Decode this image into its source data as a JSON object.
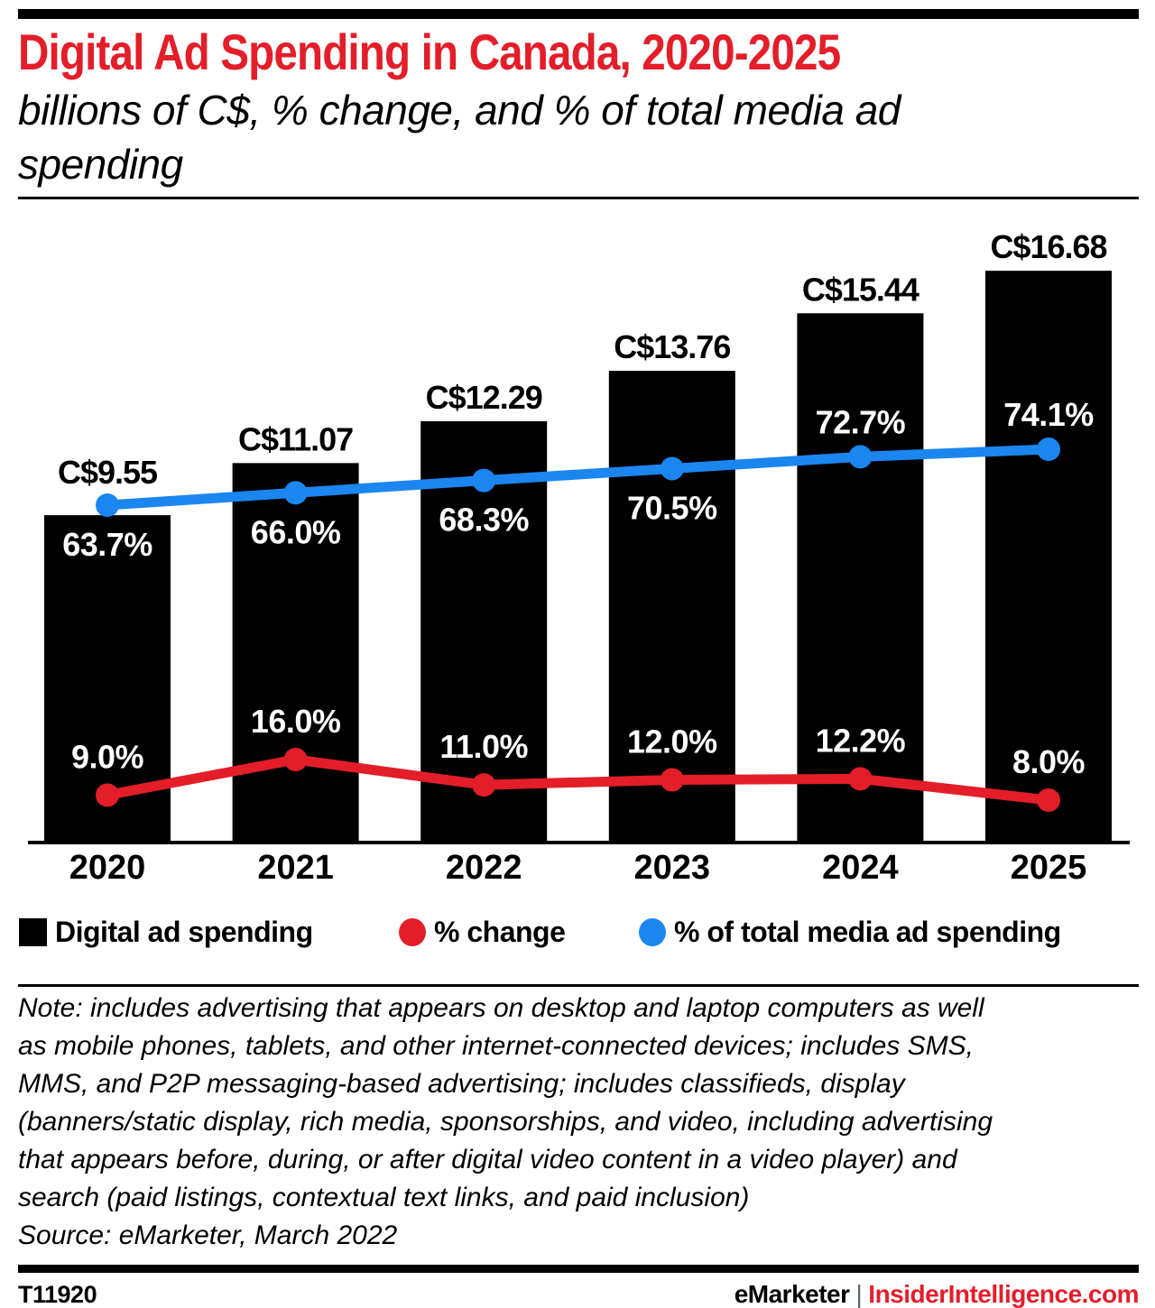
{
  "colors": {
    "red": "#e31e29",
    "blue": "#1b86ef",
    "black": "#000000",
    "white": "#ffffff",
    "separator_gray": "#5b6b7a"
  },
  "chart_data": {
    "type": "bar+line",
    "title": "Digital Ad Spending in Canada, 2020-2025",
    "subtitle": "billions of C$, % change, and % of total media ad spending",
    "subtitle_lines": [
      "billions of C$, % change, and % of total media ad",
      "spending"
    ],
    "categories": [
      "2020",
      "2021",
      "2022",
      "2023",
      "2024",
      "2025"
    ],
    "series": [
      {
        "name": "Digital ad spending",
        "type": "bar",
        "unit": "billions of C$",
        "color_key": "black",
        "values": [
          9.55,
          11.07,
          12.29,
          13.76,
          15.44,
          16.68
        ],
        "labels": [
          "C$9.55",
          "C$11.07",
          "C$12.29",
          "C$13.76",
          "C$15.44",
          "C$16.68"
        ]
      },
      {
        "name": "% change",
        "type": "line",
        "color_key": "red",
        "values": [
          9.0,
          16.0,
          11.0,
          12.0,
          12.2,
          8.0
        ],
        "labels": [
          "9.0%",
          "16.0%",
          "11.0%",
          "12.0%",
          "12.2%",
          "8.0%"
        ],
        "label_side": [
          "above",
          "above",
          "above",
          "above",
          "above",
          "above"
        ]
      },
      {
        "name": "% of total media ad spending",
        "type": "line",
        "color_key": "blue",
        "values": [
          63.7,
          66.0,
          68.3,
          70.5,
          72.7,
          74.1
        ],
        "labels": [
          "63.7%",
          "66.0%",
          "68.3%",
          "70.5%",
          "72.7%",
          "74.1%"
        ],
        "label_side": [
          "below",
          "below",
          "below",
          "below",
          "above",
          "above"
        ]
      }
    ],
    "legend_position": "bottom",
    "grid": false,
    "ylim_bar": [
      0,
      18.4
    ]
  },
  "note": {
    "lines": [
      "Note: includes advertising that appears on desktop and laptop computers as well",
      "as mobile phones, tablets, and other internet-connected devices; includes SMS,",
      "MMS, and P2P messaging-based advertising; includes classifieds, display",
      "(banners/static display, rich media, sponsorships, and video, including advertising",
      "that appears before, during, or after digital video content in a video player) and",
      "search (paid listings, contextual text links, and paid inclusion)"
    ],
    "source": "Source: eMarketer, March 2022"
  },
  "footer": {
    "id": "T11920",
    "brand": "eMarketer",
    "separator": "|",
    "site": "InsiderIntelligence.com"
  }
}
